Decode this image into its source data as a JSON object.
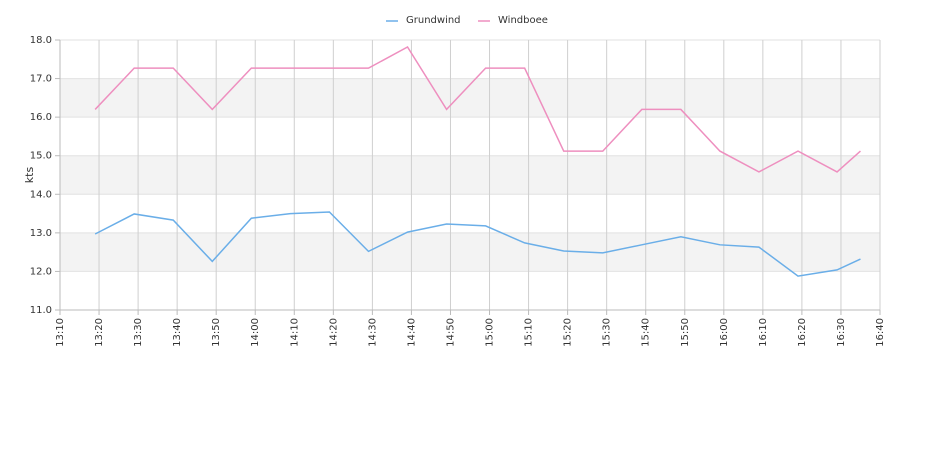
{
  "chart_data": {
    "type": "line",
    "ylabel": "kts",
    "x": [
      "13:19",
      "13:29",
      "13:39",
      "13:49",
      "13:59",
      "14:09",
      "14:19",
      "14:29",
      "14:39",
      "14:49",
      "14:59",
      "15:09",
      "15:19",
      "15:29",
      "15:39",
      "15:49",
      "15:59",
      "16:09",
      "16:19",
      "16:29",
      "16:35"
    ],
    "series": [
      {
        "name": "Grundwind",
        "color": "#6aaee8",
        "values": [
          12.97,
          13.49,
          13.33,
          12.26,
          13.38,
          13.5,
          13.54,
          12.52,
          13.02,
          13.23,
          13.18,
          12.74,
          12.53,
          12.48,
          12.69,
          12.9,
          12.69,
          12.63,
          11.88,
          12.04,
          12.32
        ]
      },
      {
        "name": "Windboee",
        "color": "#ee8fbf",
        "values": [
          16.2,
          17.27,
          17.27,
          16.2,
          17.27,
          17.27,
          17.27,
          17.27,
          17.82,
          16.2,
          17.27,
          17.27,
          15.12,
          15.12,
          16.2,
          16.2,
          15.12,
          14.58,
          15.12,
          14.58,
          15.12
        ]
      }
    ],
    "xlim": [
      "13:10",
      "16:40"
    ],
    "xticks": [
      "13:10",
      "13:20",
      "13:30",
      "13:40",
      "13:50",
      "14:00",
      "14:10",
      "14:20",
      "14:30",
      "14:40",
      "14:50",
      "15:00",
      "15:10",
      "15:20",
      "15:30",
      "15:40",
      "15:50",
      "16:00",
      "16:10",
      "16:20",
      "16:30",
      "16:40"
    ],
    "ylim": [
      11,
      18
    ],
    "yticks": [
      {
        "value": 11,
        "label": "11.0"
      },
      {
        "value": 12,
        "label": "12.0"
      },
      {
        "value": 13,
        "label": "13.0"
      },
      {
        "value": 14,
        "label": "14.0"
      },
      {
        "value": 15,
        "label": "15.0"
      },
      {
        "value": 16,
        "label": "16.0"
      },
      {
        "value": 17,
        "label": "17.0"
      },
      {
        "value": 18,
        "label": "18.0"
      }
    ],
    "grid": true,
    "legend": "top"
  }
}
